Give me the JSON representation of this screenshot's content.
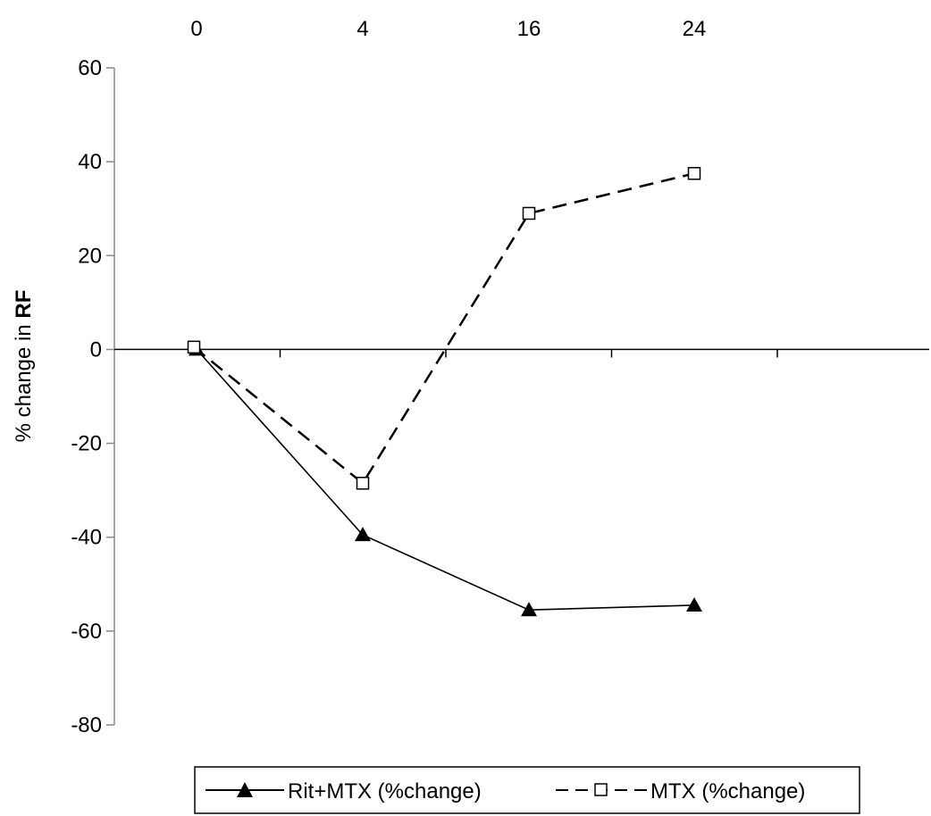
{
  "chart_data": {
    "type": "line",
    "x": [
      0,
      4,
      16,
      24
    ],
    "x_tick_labels": [
      "0",
      "4",
      "16",
      "24"
    ],
    "xaxis_position": "top",
    "ylabel_prefix": "% change in ",
    "ylabel_bold": "RF",
    "ylim": [
      -80,
      60
    ],
    "yticks": [
      60,
      40,
      20,
      0,
      -20,
      -40,
      -60,
      -80
    ],
    "grid": false,
    "legend_position": "bottom",
    "series": [
      {
        "name": "Rit+MTX (%change)",
        "values": [
          0,
          -39.5,
          -55.5,
          -54.5
        ],
        "marker": "filled-triangle",
        "line_style": "solid",
        "color": "#000000"
      },
      {
        "name": "MTX (%change)",
        "values": [
          0.5,
          -28.5,
          29,
          37.5
        ],
        "marker": "open-square",
        "line_style": "dashed",
        "color": "#000000"
      }
    ]
  }
}
